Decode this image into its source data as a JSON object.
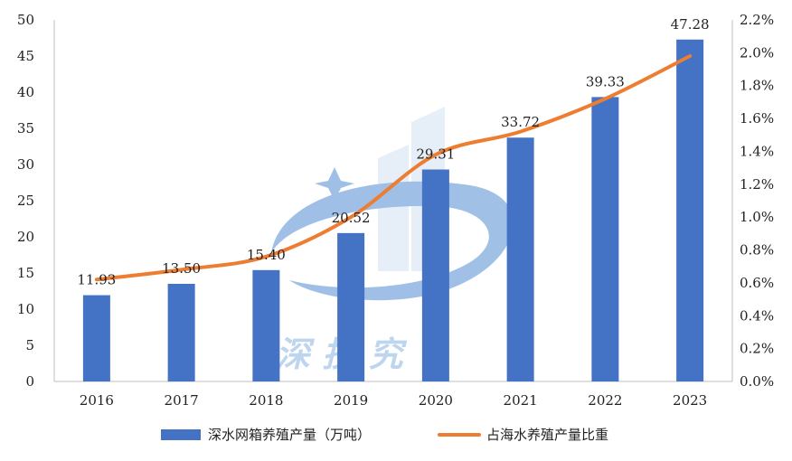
{
  "chart_data": {
    "type": "bar+line",
    "categories": [
      "2016",
      "2017",
      "2018",
      "2019",
      "2020",
      "2021",
      "2022",
      "2023"
    ],
    "series": [
      {
        "name": "深水网箱养殖产量（万吨）",
        "type": "bar",
        "axis": "left",
        "values": [
          11.93,
          13.5,
          15.4,
          20.52,
          29.31,
          33.72,
          39.33,
          47.28
        ],
        "labels": [
          "11.93",
          "13.50",
          "15.40",
          "20.52",
          "29.31",
          "33.72",
          "39.33",
          "47.28"
        ],
        "color": "#4472C4"
      },
      {
        "name": "占海水养殖产量比重",
        "type": "line",
        "axis": "right",
        "values": [
          0.62,
          0.68,
          0.76,
          1.0,
          1.38,
          1.52,
          1.72,
          1.98
        ],
        "color": "#ED7D31"
      }
    ],
    "y_left": {
      "min": 0,
      "max": 50,
      "step": 5,
      "ticks": [
        "0",
        "5",
        "10",
        "15",
        "20",
        "25",
        "30",
        "35",
        "40",
        "45",
        "50"
      ]
    },
    "y_right": {
      "min": 0,
      "max": 2.2,
      "step": 0.2,
      "ticks": [
        "0.0%",
        "0.2%",
        "0.4%",
        "0.6%",
        "0.8%",
        "1.0%",
        "1.2%",
        "1.4%",
        "1.6%",
        "1.8%",
        "2.0%",
        "2.2%"
      ]
    },
    "grid": false,
    "legend": "bottom"
  },
  "watermark": {
    "text": "深   技  究"
  },
  "colors": {
    "bar": "#4472C4",
    "line": "#ED7D31",
    "axis": "#bfbfbf",
    "watermark": "#9dc3e6"
  }
}
